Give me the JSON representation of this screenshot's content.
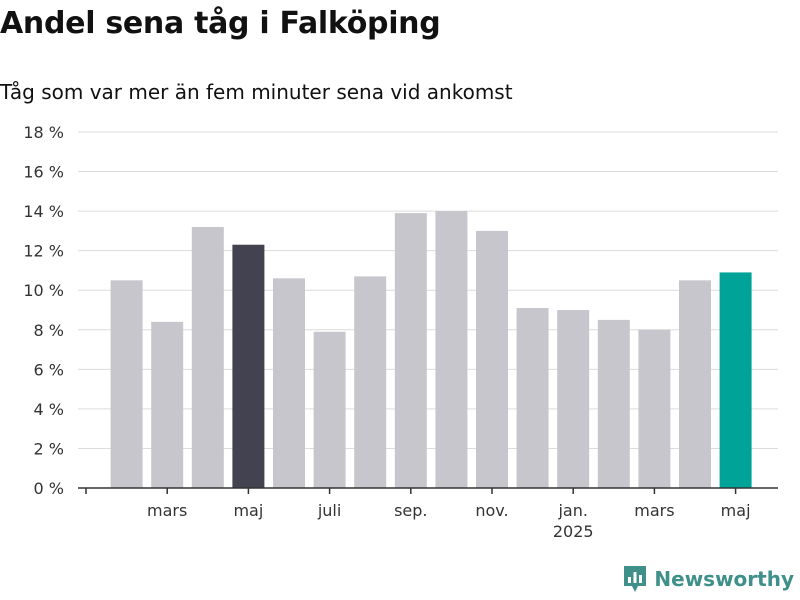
{
  "title": "Andel sena tåg i Falköping",
  "subtitle": "Tåg som var mer än fem minuter sena vid ankomst",
  "brand": {
    "name": "Newsworthy",
    "icon": "newsworthy-logo-icon",
    "color": "#3f8f8a"
  },
  "colors": {
    "default": "#c7c6cc",
    "highlight": "#424250",
    "latest": "#00a398"
  },
  "chart_data": {
    "type": "bar",
    "categories": [
      "2024-02",
      "2024-03",
      "2024-04",
      "2024-05",
      "2024-06",
      "2024-07",
      "2024-08",
      "2024-09",
      "2024-10",
      "2024-11",
      "2024-12",
      "2025-01",
      "2025-02",
      "2025-03",
      "2025-04",
      "2025-05"
    ],
    "values": [
      10.5,
      8.4,
      13.2,
      12.3,
      10.6,
      7.9,
      10.7,
      13.9,
      14.0,
      13.0,
      9.1,
      9.0,
      8.5,
      8.0,
      10.5,
      10.9
    ],
    "bar_colors": [
      "default",
      "default",
      "default",
      "highlight",
      "default",
      "default",
      "default",
      "default",
      "default",
      "default",
      "default",
      "default",
      "default",
      "default",
      "default",
      "latest"
    ],
    "yticks": [
      "0 %",
      "2 %",
      "4 %",
      "6 %",
      "8 %",
      "10 %",
      "12 %",
      "14 %",
      "16 %",
      "18 %"
    ],
    "ylim": [
      0,
      18
    ],
    "xtick_labels": [
      {
        "label": "mars",
        "at": "2024-03"
      },
      {
        "label": "maj",
        "at": "2024-05"
      },
      {
        "label": "juli",
        "at": "2024-07"
      },
      {
        "label": "sep.",
        "at": "2024-09"
      },
      {
        "label": "nov.",
        "at": "2024-11"
      },
      {
        "label": "jan.",
        "at": "2025-01"
      },
      {
        "label": "mars",
        "at": "2025-03"
      },
      {
        "label": "maj",
        "at": "2025-05"
      }
    ],
    "year_labels": [
      {
        "label": "2025",
        "at": "2025-01"
      }
    ],
    "xlabel": "",
    "ylabel": "",
    "grid": true
  }
}
